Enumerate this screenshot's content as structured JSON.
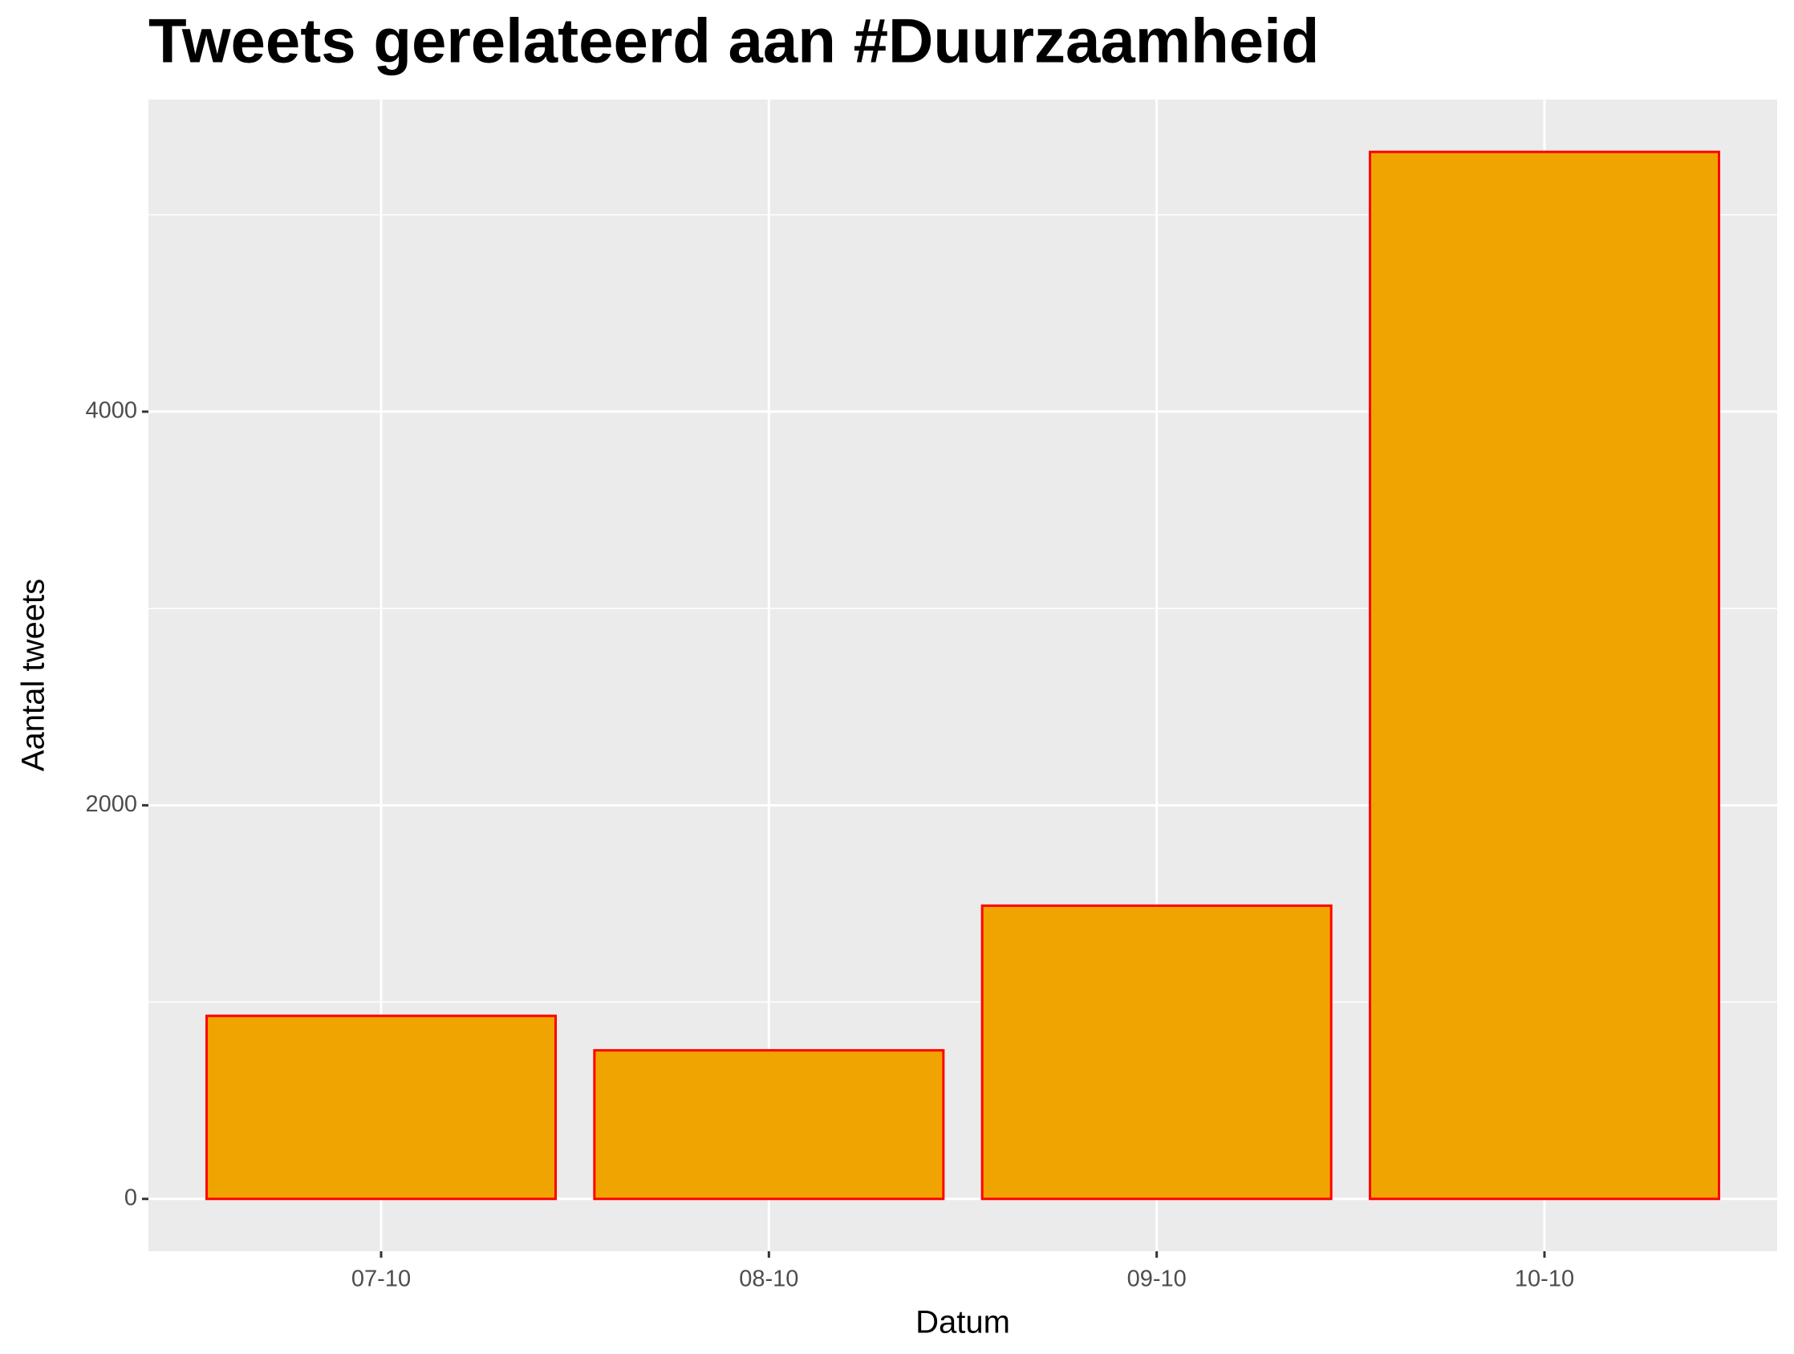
{
  "chart_data": {
    "type": "bar",
    "title": "Tweets gerelateerd aan #Duurzaamheid",
    "x_label": "Datum",
    "y_label": "Aantal tweets",
    "categories": [
      "07-10",
      "08-10",
      "09-10",
      "10-10"
    ],
    "values": [
      930,
      755,
      1490,
      5320
    ],
    "color": "#f0a402",
    "edge_color": "#ff0000",
    "ylim": [
      -266,
      5586
    ],
    "yticks": [
      0,
      2000,
      4000
    ],
    "grid": true
  }
}
